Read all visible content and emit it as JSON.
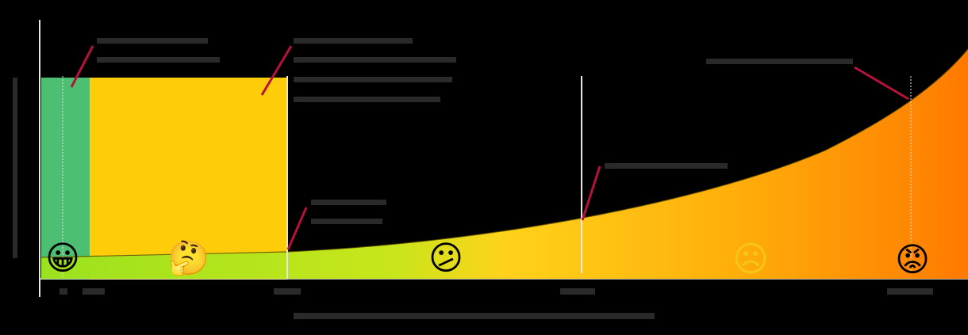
{
  "diagram": {
    "x_axis_label": "",
    "y_axis_label": "",
    "x_ticks": [
      "",
      "",
      "",
      "",
      ""
    ],
    "annotations": [
      {
        "id": "green-zone-note",
        "text": ""
      },
      {
        "id": "yellow-zone-note",
        "text": ""
      },
      {
        "id": "curve-start-note",
        "text": ""
      },
      {
        "id": "mid-curve-note",
        "text": ""
      },
      {
        "id": "peak-note",
        "text": ""
      }
    ],
    "emoji": [
      {
        "id": "grinning-face",
        "glyph": "😀"
      },
      {
        "id": "thinking-face",
        "glyph": "🤔"
      },
      {
        "id": "confused-face",
        "glyph": "😕"
      },
      {
        "id": "frowning-face",
        "glyph": "☹"
      },
      {
        "id": "angry-face",
        "glyph": "😡"
      }
    ],
    "colors": {
      "background": "#000000",
      "green_zone": "#4CBF73",
      "yellow_zone": "#FFCC0A",
      "curve_start": "#9BE21E",
      "curve_end": "#FF7A00",
      "callout_line": "#B5123A",
      "guide_line": "#E6E6E6",
      "placeholder_text": "#2A2A2A"
    }
  }
}
